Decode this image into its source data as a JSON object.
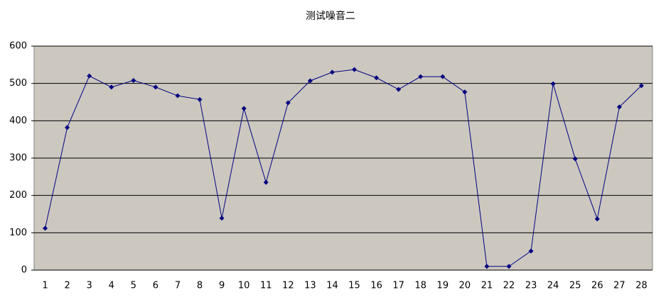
{
  "chart_data": {
    "type": "line",
    "title": "测试噪音二",
    "categories": [
      "1",
      "2",
      "3",
      "4",
      "5",
      "6",
      "7",
      "8",
      "9",
      "10",
      "11",
      "12",
      "13",
      "14",
      "15",
      "16",
      "17",
      "18",
      "19",
      "20",
      "21",
      "22",
      "23",
      "24",
      "25",
      "26",
      "27",
      "28"
    ],
    "values": [
      112,
      382,
      520,
      490,
      508,
      490,
      467,
      457,
      139,
      433,
      235,
      448,
      507,
      530,
      537,
      515,
      484,
      518,
      518,
      477,
      10,
      10,
      51,
      499,
      298,
      137,
      437,
      494
    ],
    "color": "#000080",
    "ylim": [
      0,
      600
    ],
    "yticks": [
      0,
      100,
      200,
      300,
      400,
      500,
      600
    ],
    "grid": true
  }
}
